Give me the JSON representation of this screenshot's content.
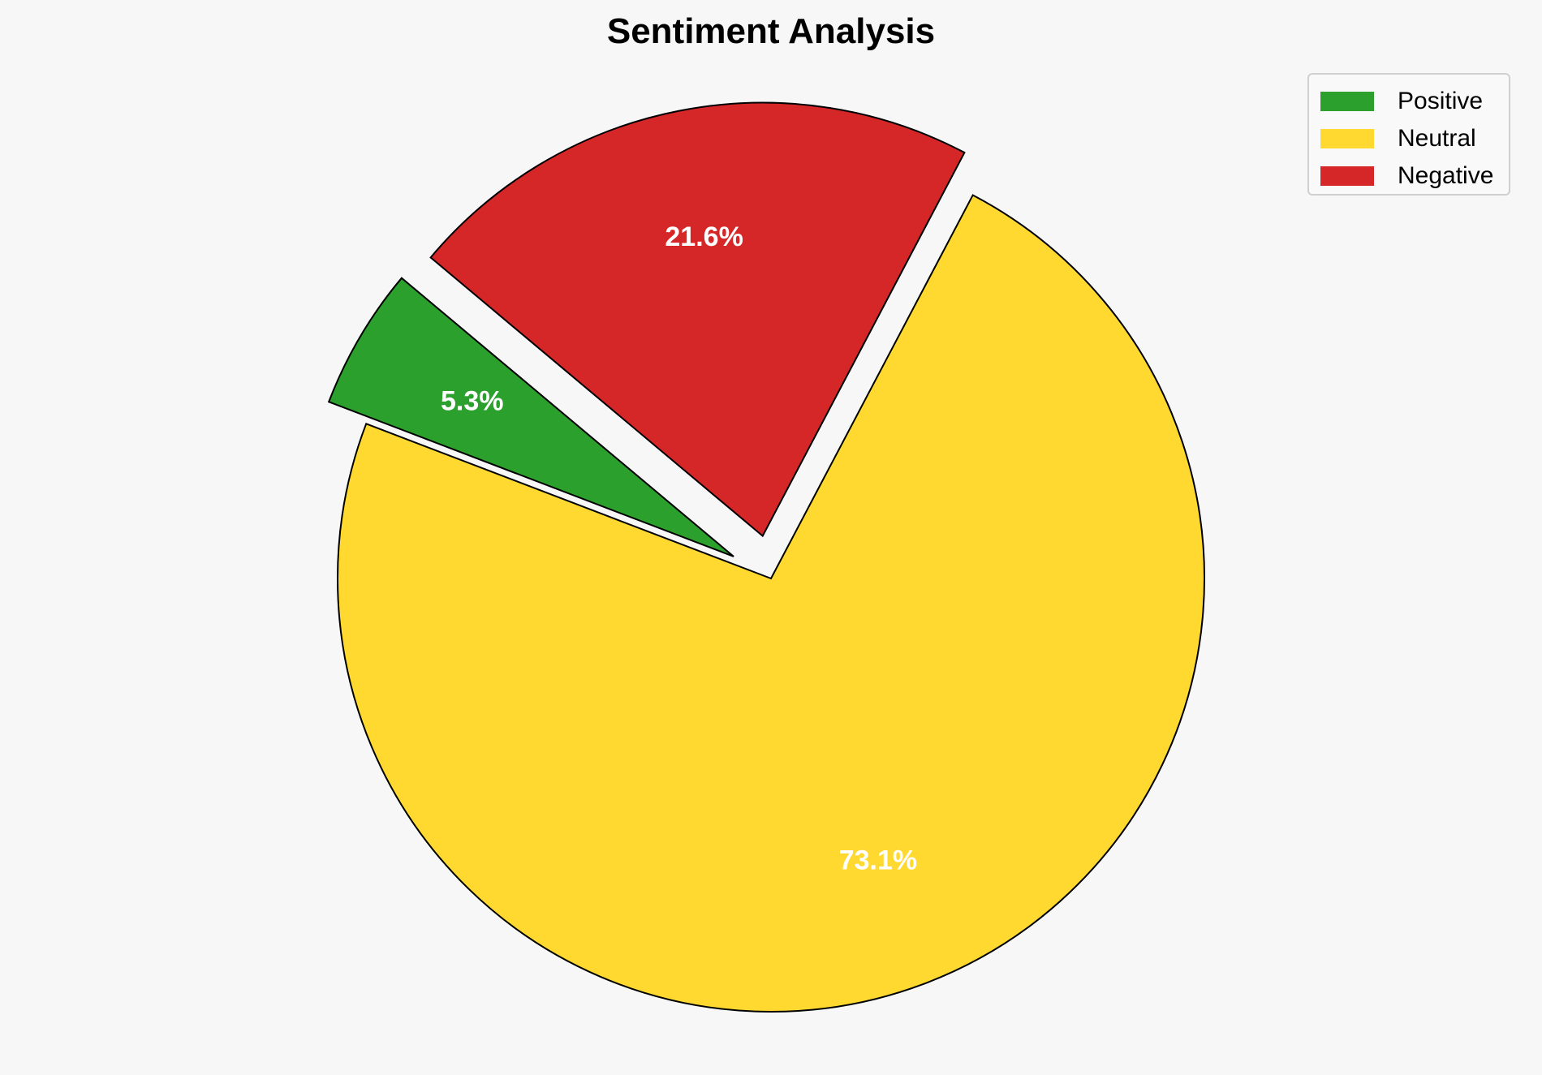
{
  "chart_data": {
    "type": "pie",
    "title": "Sentiment Analysis",
    "start_angle": 140,
    "labels": [
      "Positive",
      "Neutral",
      "Negative"
    ],
    "values": [
      5.3,
      73.1,
      21.6
    ],
    "pct_labels": [
      "5.3%",
      "73.1%",
      "21.6%"
    ],
    "colors": [
      "#2ca02c",
      "#ffd92f",
      "#d62728"
    ],
    "explode": [
      0.1,
      0,
      0.1
    ],
    "legend_position": "top-right"
  }
}
